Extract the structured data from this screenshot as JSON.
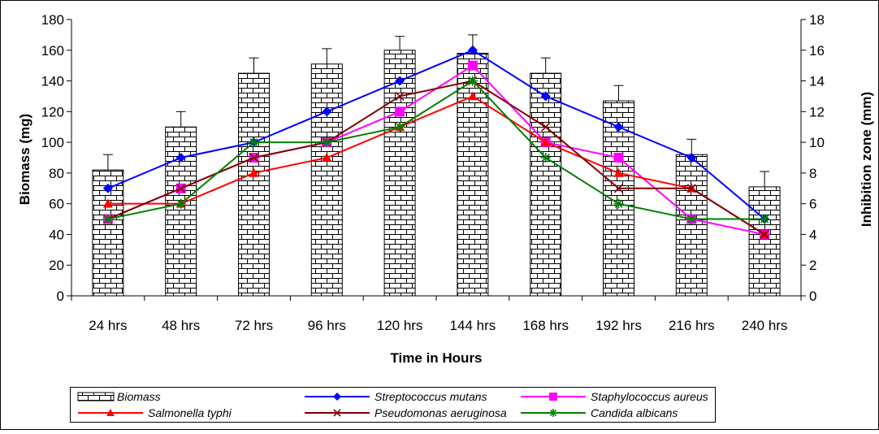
{
  "chart_data": {
    "type": "bar+line",
    "categories": [
      "24 hrs",
      "48 hrs",
      "72 hrs",
      "96 hrs",
      "120 hrs",
      "144 hrs",
      "168 hrs",
      "192 hrs",
      "216 hrs",
      "240 hrs"
    ],
    "xlabel": "Time in Hours",
    "ylabel_left": "Biomass (mg)",
    "ylabel_right": "Inhibition zone (mm)",
    "ylim_left": [
      0,
      180
    ],
    "ylim_right": [
      0,
      18
    ],
    "yticks_left": [
      "0",
      "20",
      "40",
      "60",
      "80",
      "100",
      "120",
      "140",
      "160",
      "180"
    ],
    "yticks_right": [
      "0",
      "2",
      "4",
      "6",
      "8",
      "10",
      "12",
      "14",
      "16",
      "18"
    ],
    "grid": false,
    "legend_position": "bottom",
    "bars": {
      "name": "Biomass",
      "axis": "left",
      "values": [
        82,
        110,
        145,
        151,
        160,
        158,
        145,
        127,
        92,
        71
      ],
      "error": [
        10,
        10,
        10,
        10,
        9,
        12,
        10,
        10,
        10,
        10
      ],
      "fill_pattern": "brick",
      "color": "#000000"
    },
    "series": [
      {
        "name": "Streptococcus mutans",
        "axis": "right",
        "color": "#0000FF",
        "marker": "diamond",
        "values": [
          7,
          9,
          10,
          12,
          14,
          16,
          13,
          11,
          9,
          5
        ]
      },
      {
        "name": "Staphylococcus aureus",
        "axis": "right",
        "color": "#FF00FF",
        "marker": "square",
        "values": [
          5,
          7,
          9,
          10,
          12,
          15,
          10,
          9,
          5,
          4
        ]
      },
      {
        "name": "Salmonella typhi",
        "axis": "right",
        "color": "#FF0000",
        "marker": "triangle",
        "values": [
          6,
          6,
          8,
          9,
          11,
          13,
          10,
          8,
          7,
          4
        ]
      },
      {
        "name": "Pseudomonas aeruginosa",
        "axis": "right",
        "color": "#800000",
        "marker": "x",
        "values": [
          5,
          7,
          9,
          10,
          13,
          14,
          11,
          7,
          7,
          4
        ]
      },
      {
        "name": "Candida albicans",
        "axis": "right",
        "color": "#008000",
        "marker": "star",
        "values": [
          5,
          6,
          10,
          10,
          11,
          14,
          9,
          6,
          5,
          5
        ]
      }
    ]
  }
}
